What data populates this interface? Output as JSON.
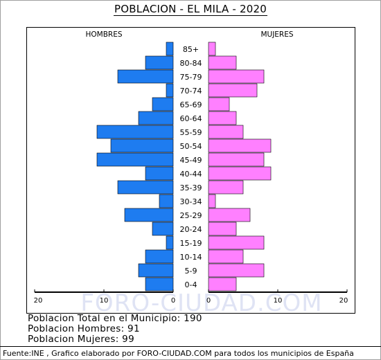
{
  "title": "POBLACION - EL MILA - 2020",
  "chart_data": {
    "type": "bar",
    "orientation": "horizontal-pyramid",
    "categories": [
      "85+",
      "80-84",
      "75-79",
      "70-74",
      "65-69",
      "60-64",
      "55-59",
      "50-54",
      "45-49",
      "40-44",
      "35-39",
      "30-34",
      "25-29",
      "20-24",
      "15-19",
      "10-14",
      "5-9",
      "0-4"
    ],
    "series": [
      {
        "name": "HOMBRES",
        "color": "#1e7cf0",
        "values": [
          1,
          4,
          8,
          1,
          3,
          5,
          11,
          9,
          11,
          4,
          8,
          2,
          7,
          3,
          1,
          4,
          5,
          4
        ]
      },
      {
        "name": "MUJERES",
        "color": "#ff80ff",
        "values": [
          1,
          4,
          8,
          7,
          3,
          4,
          5,
          9,
          8,
          9,
          5,
          1,
          6,
          4,
          8,
          5,
          8,
          4
        ]
      }
    ],
    "x_ticks_left": [
      "20",
      "10",
      "0"
    ],
    "x_ticks_right": [
      "0",
      "10",
      "20"
    ],
    "xlim": [
      0,
      20
    ],
    "legend": [
      "HOMBRES",
      "MUJERES"
    ],
    "watermark": "FORO-CIUDAD.COM"
  },
  "stats": {
    "total": "Poblacion Total en el Municipio: 190",
    "men": "Poblacion Hombres: 91",
    "women": "Poblacion Mujeres: 99"
  },
  "source": "Fuente:INE , Grafico elaborado por FORO-CIUDAD.COM para todos los municipios de España"
}
